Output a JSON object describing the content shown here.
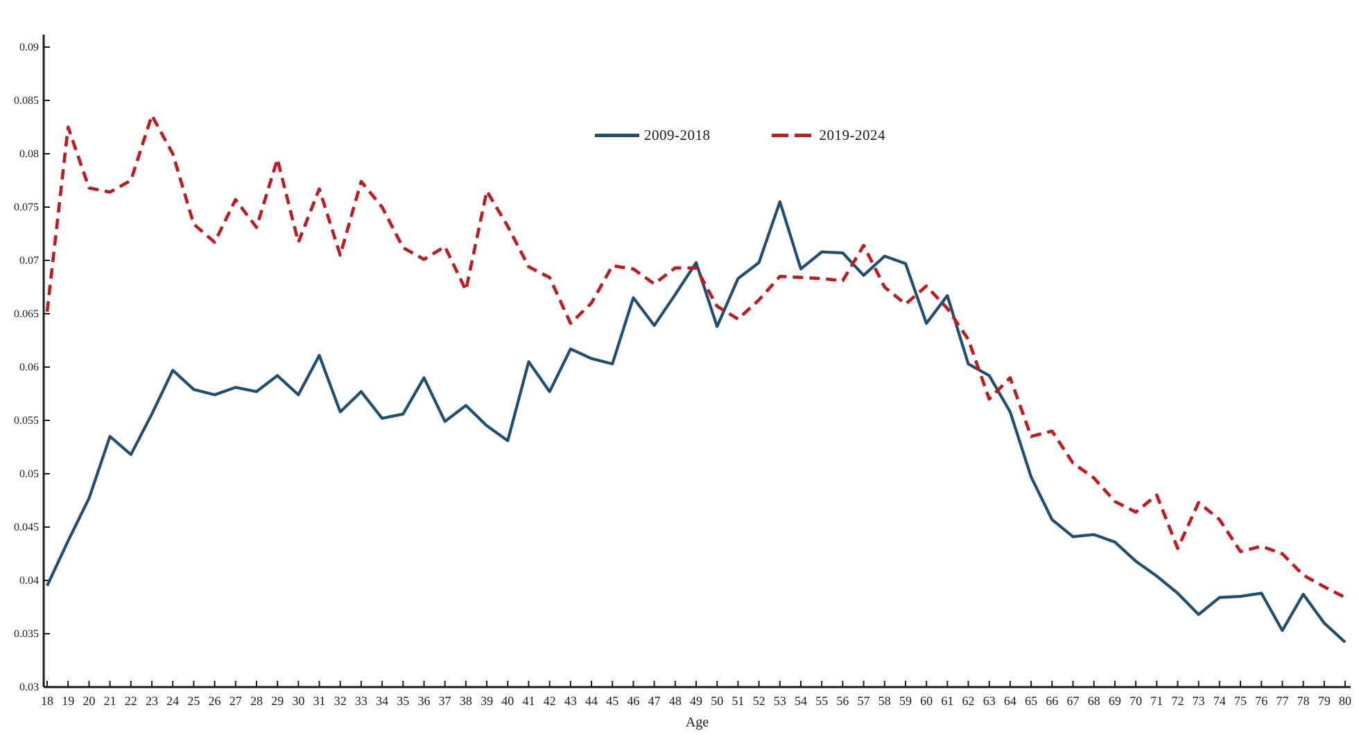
{
  "axis": {
    "xlabel": "Age",
    "yticks": [
      "0.09",
      "0.085",
      "0.08",
      "0.075",
      "0.07",
      "0.065",
      "0.06",
      "0.055",
      "0.05",
      "0.045",
      "0.04",
      "0.035",
      "0.03"
    ]
  },
  "chart_data": {
    "type": "line",
    "title": "",
    "xlabel": "Age",
    "ylabel": "",
    "ylim": [
      0.03,
      0.09
    ],
    "ytick_step": 0.005,
    "grid": false,
    "legend_position": "top-center",
    "x": [
      18,
      19,
      20,
      21,
      22,
      23,
      24,
      25,
      26,
      27,
      28,
      29,
      30,
      31,
      32,
      33,
      34,
      35,
      36,
      37,
      38,
      39,
      40,
      41,
      42,
      43,
      44,
      45,
      46,
      47,
      48,
      49,
      50,
      51,
      52,
      53,
      54,
      55,
      56,
      57,
      58,
      59,
      60,
      61,
      62,
      63,
      64,
      65,
      66,
      67,
      68,
      69,
      70,
      71,
      72,
      73,
      74,
      75,
      76,
      77,
      78,
      79,
      80
    ],
    "series": [
      {
        "name": "2009-2018",
        "style": "solid",
        "color": "#1f4e74",
        "values": [
          0.0395,
          0.0437,
          0.0477,
          0.0535,
          0.0518,
          0.0556,
          0.0597,
          0.0579,
          0.0574,
          0.0581,
          0.0577,
          0.0592,
          0.0574,
          0.0611,
          0.0558,
          0.0577,
          0.0552,
          0.0556,
          0.059,
          0.0549,
          0.0564,
          0.0545,
          0.0531,
          0.0605,
          0.0577,
          0.0617,
          0.0608,
          0.0603,
          0.0665,
          0.0639,
          0.0668,
          0.0698,
          0.0638,
          0.0683,
          0.0698,
          0.0755,
          0.0692,
          0.0708,
          0.0707,
          0.0686,
          0.0704,
          0.0697,
          0.0641,
          0.0667,
          0.0603,
          0.0592,
          0.0558,
          0.0497,
          0.0457,
          0.0441,
          0.0443,
          0.0436,
          0.0418,
          0.0404,
          0.0388,
          0.0368,
          0.0384,
          0.0385,
          0.0388,
          0.0353,
          0.0387,
          0.036,
          0.0342
        ]
      },
      {
        "name": "2019-2024",
        "style": "dashed",
        "color": "#c3181c",
        "values": [
          0.0652,
          0.0825,
          0.0768,
          0.0764,
          0.0775,
          0.0836,
          0.08,
          0.0734,
          0.0717,
          0.0757,
          0.0731,
          0.0795,
          0.0717,
          0.0767,
          0.0705,
          0.0774,
          0.075,
          0.0712,
          0.0701,
          0.0713,
          0.0672,
          0.0765,
          0.0732,
          0.0694,
          0.0684,
          0.0641,
          0.066,
          0.0695,
          0.0692,
          0.0678,
          0.0693,
          0.0693,
          0.0657,
          0.0645,
          0.0663,
          0.0685,
          0.0684,
          0.0683,
          0.0681,
          0.0714,
          0.0675,
          0.0659,
          0.0676,
          0.0655,
          0.0626,
          0.057,
          0.059,
          0.0535,
          0.054,
          0.051,
          0.0496,
          0.0474,
          0.0464,
          0.048,
          0.043,
          0.0473,
          0.0457,
          0.0427,
          0.0432,
          0.0425,
          0.0405,
          0.0394,
          0.0384
        ]
      }
    ]
  }
}
